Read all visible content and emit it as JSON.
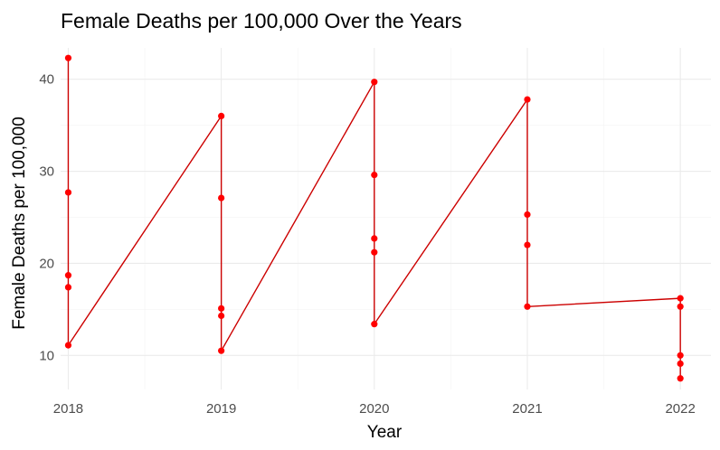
{
  "chart_data": {
    "type": "line",
    "title": "Female Deaths per 100,000 Over the Years",
    "xlabel": "Year",
    "ylabel": "Female Deaths per 100,000",
    "x_ticks": [
      "2018",
      "2019",
      "2020",
      "2021",
      "2022"
    ],
    "y_ticks": [
      10,
      20,
      30,
      40
    ],
    "xlim": [
      2017.95,
      2022.2
    ],
    "ylim": [
      6.3,
      43.4
    ],
    "grid": true,
    "legend": "none",
    "color": "#ff0000",
    "line_color": "#cc0000",
    "series": [
      {
        "points": [
          [
            2018,
            42.3
          ],
          [
            2018,
            27.7
          ],
          [
            2018,
            18.7
          ],
          [
            2018,
            17.4
          ],
          [
            2018,
            11.1
          ],
          [
            2019,
            36.0
          ],
          [
            2019,
            27.1
          ],
          [
            2019,
            15.1
          ],
          [
            2019,
            14.3
          ],
          [
            2019,
            10.5
          ],
          [
            2020,
            39.7
          ],
          [
            2020,
            29.6
          ],
          [
            2020,
            22.7
          ],
          [
            2020,
            21.2
          ],
          [
            2020,
            13.4
          ],
          [
            2021,
            37.8
          ],
          [
            2021,
            25.3
          ],
          [
            2021,
            22.0
          ],
          [
            2021,
            15.3
          ],
          [
            2022,
            16.2
          ],
          [
            2022,
            15.3
          ],
          [
            2022,
            10.0
          ],
          [
            2022,
            9.1
          ],
          [
            2022,
            7.5
          ]
        ]
      }
    ]
  }
}
